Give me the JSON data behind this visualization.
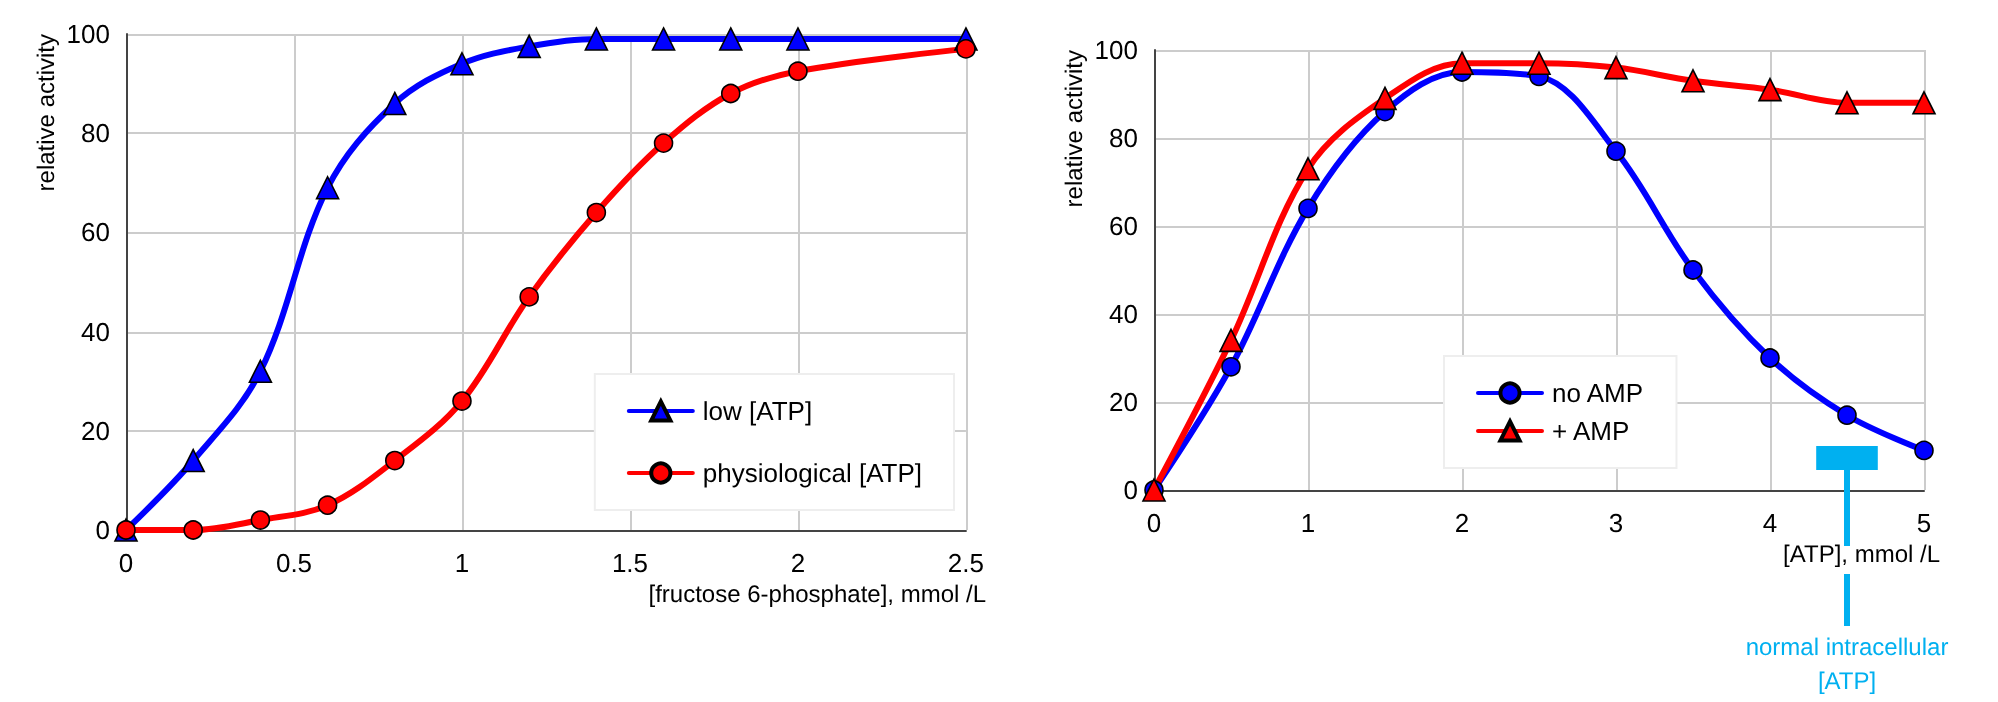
{
  "chart_data": [
    {
      "type": "line",
      "ylabel": "relative activity",
      "xlabel": "[fructose 6-phosphate], mmol /L",
      "x": [
        0,
        0.2,
        0.4,
        0.6,
        0.8,
        1,
        1.2,
        1.4,
        1.6,
        1.8,
        2,
        2.5
      ],
      "xlim": [
        0,
        2.5
      ],
      "xticks": [
        0,
        0.5,
        1,
        1.5,
        2,
        2.5
      ],
      "ylim": [
        0,
        100
      ],
      "yticks": [
        0,
        20,
        40,
        60,
        80,
        100
      ],
      "grid": true,
      "legend": "bottom right",
      "series": [
        {
          "name": "low [ATP]",
          "color": "#0000ff",
          "marker": "triangle",
          "values": [
            0,
            14,
            32,
            69,
            86,
            94,
            97.5,
            99,
            99,
            99,
            99,
            99
          ]
        },
        {
          "name": "physiological [ATP]",
          "color": "#ff0000",
          "marker": "circle",
          "values": [
            0,
            0,
            2,
            5,
            14,
            26,
            47,
            64,
            78,
            88,
            92.5,
            97
          ]
        }
      ]
    },
    {
      "type": "line",
      "ylabel": "relative activity",
      "xlabel": "[ATP], mmol /L",
      "x": [
        0,
        0.5,
        1,
        1.5,
        2,
        2.5,
        3,
        3.5,
        4,
        4.5,
        5
      ],
      "xlim": [
        0,
        5
      ],
      "xticks": [
        0,
        1,
        2,
        3,
        4,
        5
      ],
      "ylim": [
        0,
        100
      ],
      "yticks": [
        0,
        20,
        40,
        60,
        80,
        100
      ],
      "grid": true,
      "legend": "bottom",
      "bands": [
        {
          "axis": "x",
          "from": 4.3,
          "to": 4.7,
          "label": "normal intracellular\n[ATP]",
          "color": "#00b0f0"
        }
      ],
      "series": [
        {
          "name": "no AMP",
          "color": "#0000ff",
          "marker": "circle",
          "values": [
            0,
            28,
            64,
            86,
            95,
            94,
            77,
            50,
            30,
            17,
            9
          ]
        },
        {
          "name": "+ AMP",
          "color": "#ff0000",
          "marker": "triangle",
          "values": [
            0,
            34,
            73,
            89,
            97,
            97,
            96,
            93,
            91,
            88,
            88
          ]
        }
      ]
    }
  ]
}
